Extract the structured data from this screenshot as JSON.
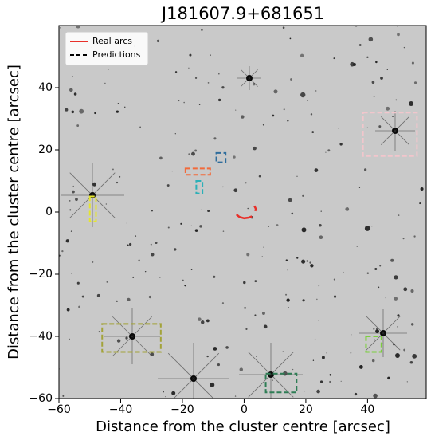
{
  "chart_data": {
    "type": "image",
    "title": "J181607.9+681651",
    "xlabel": "Distance from the cluster centre [arcsec]",
    "ylabel": "Distance from the cluster centre [arcsec]",
    "xlim": [
      -60,
      59
    ],
    "ylim": [
      -60,
      60
    ],
    "xticks": [
      {
        "value": -60,
        "label": "−60"
      },
      {
        "value": -40,
        "label": "−40"
      },
      {
        "value": -20,
        "label": "−20"
      },
      0,
      20,
      40
    ],
    "yticks": [
      {
        "value": -60,
        "label": "−60"
      },
      {
        "value": -40,
        "label": "−40"
      },
      {
        "value": -20,
        "label": "−20"
      },
      0,
      20,
      40
    ],
    "legend": "upper left",
    "series": [
      {
        "name": "Real arcs",
        "color": "#e8302a",
        "arcs": [
          {
            "x": [
              -2.5,
              -1.5,
              0,
              1.5,
              2.5
            ],
            "y": [
              -0.8,
              -1.6,
              -2,
              -1.8,
              -1.4
            ]
          },
          {
            "x": [
              3.3,
              3.8,
              3.6
            ],
            "y": [
              2,
              1,
              0.3
            ]
          }
        ]
      },
      {
        "name": "Predictions",
        "color": "#000000",
        "boxes": [
          {
            "x": [
              -50,
              -48
            ],
            "y": [
              -3,
              5
            ],
            "color": "#e6e62e"
          },
          {
            "x": [
              -19,
              -11
            ],
            "y": [
              12,
              14
            ],
            "color": "#f26a3a"
          },
          {
            "x": [
              -15.5,
              -13.5
            ],
            "y": [
              6,
              10
            ],
            "color": "#2bb0b8"
          },
          {
            "x": [
              -9,
              -6
            ],
            "y": [
              16,
              19
            ],
            "color": "#2f6d9c"
          },
          {
            "x": [
              -46,
              -27
            ],
            "y": [
              -45,
              -36
            ],
            "color": "#a3a33a"
          },
          {
            "x": [
              7,
              17
            ],
            "y": [
              -58,
              -52
            ],
            "color": "#2e7d55"
          },
          {
            "x": [
              39.5,
              44.5
            ],
            "y": [
              -45,
              -40
            ],
            "color": "#7ccf3e"
          },
          {
            "x": [
              38.5,
              56
            ],
            "y": [
              18,
              32
            ],
            "color": "#f2c6cc"
          }
        ]
      }
    ]
  }
}
